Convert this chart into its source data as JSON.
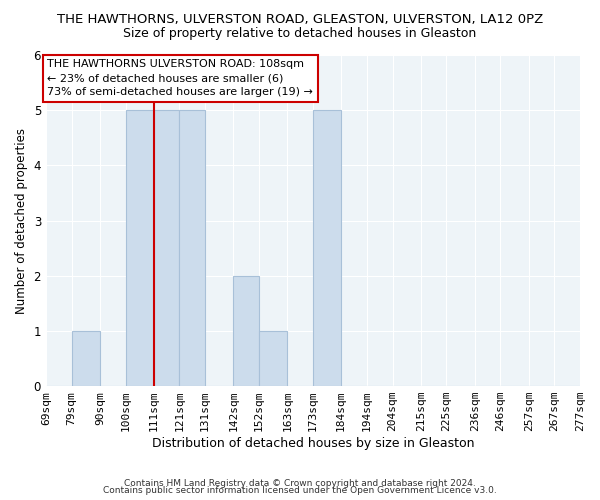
{
  "title": "THE HAWTHORNS, ULVERSTON ROAD, GLEASTON, ULVERSTON, LA12 0PZ",
  "subtitle": "Size of property relative to detached houses in Gleaston",
  "xlabel": "Distribution of detached houses by size in Gleaston",
  "ylabel": "Number of detached properties",
  "bin_edges": [
    69,
    79,
    90,
    100,
    111,
    121,
    131,
    142,
    152,
    163,
    173,
    184,
    194,
    204,
    215,
    225,
    236,
    246,
    257,
    267,
    277
  ],
  "bar_heights": [
    0,
    1,
    0,
    5,
    5,
    5,
    0,
    2,
    1,
    0,
    5,
    0,
    0,
    0,
    0,
    0,
    0,
    0,
    0,
    0
  ],
  "bar_color": "#ccdcec",
  "bar_edgecolor": "#a8c0d8",
  "ref_line_x": 111,
  "ref_line_color": "#cc0000",
  "ylim": [
    0,
    6
  ],
  "yticks": [
    0,
    1,
    2,
    3,
    4,
    5,
    6
  ],
  "annotation_title": "THE HAWTHORNS ULVERSTON ROAD: 108sqm",
  "annotation_line1": "← 23% of detached houses are smaller (6)",
  "annotation_line2": "73% of semi-detached houses are larger (19) →",
  "footer_line1": "Contains HM Land Registry data © Crown copyright and database right 2024.",
  "footer_line2": "Contains public sector information licensed under the Open Government Licence v3.0.",
  "background_color": "#ffffff",
  "plot_bg_color": "#eef4f8",
  "grid_color": "#ffffff",
  "title_fontsize": 9.5,
  "subtitle_fontsize": 9.0,
  "ylabel_fontsize": 8.5,
  "xlabel_fontsize": 9.0,
  "tick_fontsize": 8.0,
  "footer_fontsize": 6.5,
  "ann_fontsize": 8.0
}
